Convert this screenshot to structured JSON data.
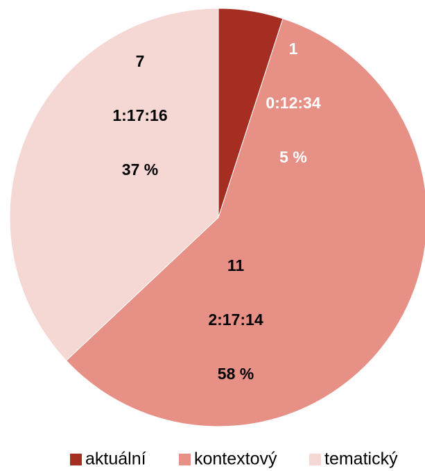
{
  "chart_data": {
    "type": "pie",
    "categories": [
      "aktuální",
      "kontextový",
      "tematický"
    ],
    "values": [
      5,
      58,
      37
    ],
    "counts": [
      "1",
      "11",
      "7"
    ],
    "durations": [
      "0:12:34",
      "2:17:14",
      "1:17:16"
    ],
    "percent_labels": [
      "5 %",
      "58 %",
      "37 %"
    ],
    "colors": [
      "#a52d22",
      "#e79086",
      "#f5d7d4"
    ],
    "title": "",
    "legend_position": "bottom-right"
  }
}
